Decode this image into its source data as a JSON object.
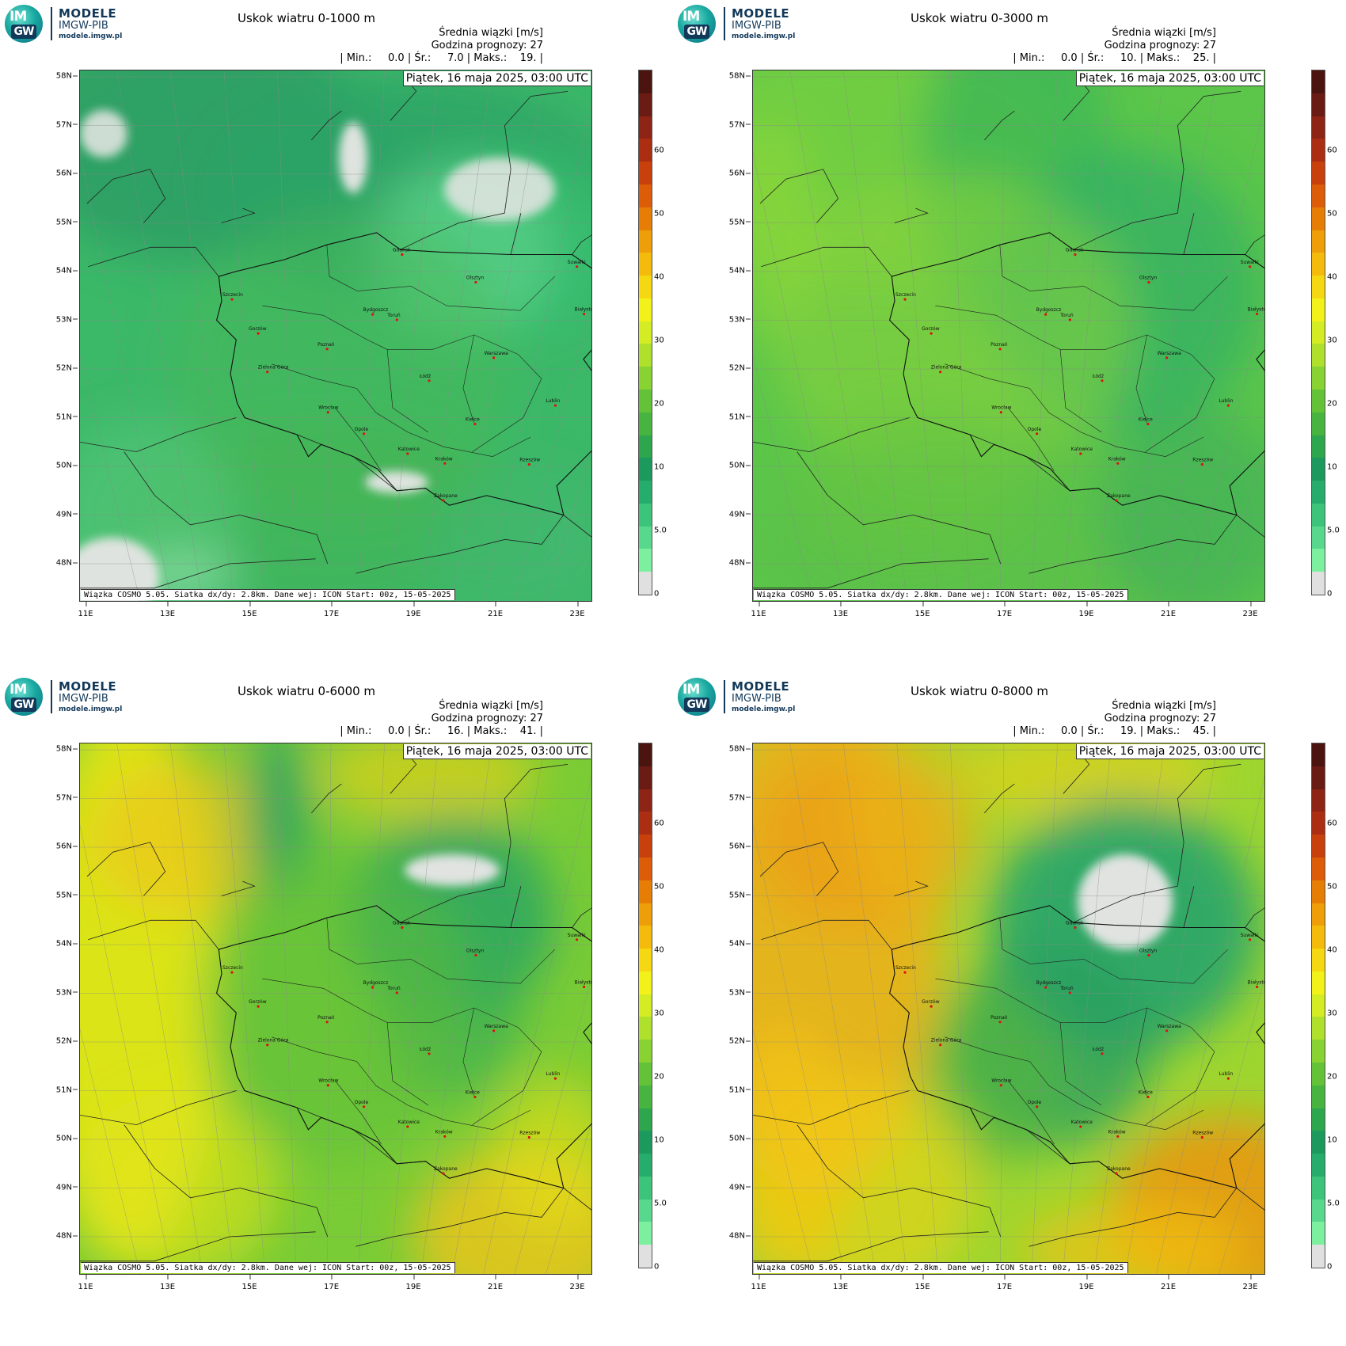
{
  "logo": {
    "brand": "MODELE",
    "org": "IMGW-PIB",
    "url": "modele.imgw.pl",
    "mark_top": "IM",
    "mark_bottom": "GW"
  },
  "common": {
    "subtitle": "Średnia wiązki [m/s]",
    "forecast_hour": "Godzina prognozy: 27",
    "date": "Piątek, 16 maja 2025, 03:00 UTC",
    "footer": "Wiązka COSMO 5.05. Siatka dx/dy: 2.8km. Dane wej: ICON Start: 00z, 15-05-2025",
    "lat_labels": [
      "58N",
      "57N",
      "56N",
      "55N",
      "54N",
      "53N",
      "52N",
      "51N",
      "50N",
      "49N",
      "48N"
    ],
    "lon_labels": [
      "11E",
      "13E",
      "15E",
      "17E",
      "19E",
      "21E",
      "23E"
    ],
    "colorbar_labels": [
      "0",
      "5.0",
      "10",
      "20",
      "30",
      "40",
      "50",
      "60"
    ],
    "colorbar_colors": [
      "#e0e0e0",
      "#7df0a0",
      "#58d88c",
      "#3cc47a",
      "#26ad6c",
      "#1c9a5e",
      "#2ea64e",
      "#46b43e",
      "#64c238",
      "#88d232",
      "#aee02c",
      "#d4ec24",
      "#f2f21a",
      "#f6d812",
      "#f4bb0c",
      "#ee9e08",
      "#e67e06",
      "#dc5c08",
      "#c8400c",
      "#ac2e12",
      "#8e2416",
      "#6a1c14",
      "#4c140e"
    ],
    "cities": [
      {
        "name": "Gdańsk",
        "lon": 18.65,
        "lat": 54.35
      },
      {
        "name": "Olsztyn",
        "lon": 20.48,
        "lat": 53.78
      },
      {
        "name": "Suwałki",
        "lon": 22.93,
        "lat": 54.1
      },
      {
        "name": "Białystok",
        "lon": 23.16,
        "lat": 53.13
      },
      {
        "name": "Szczecin",
        "lon": 14.55,
        "lat": 53.43
      },
      {
        "name": "Bydgoszcz",
        "lon": 18.0,
        "lat": 53.12
      },
      {
        "name": "Toruń",
        "lon": 18.6,
        "lat": 53.01
      },
      {
        "name": "Gorzów",
        "lon": 15.23,
        "lat": 52.73
      },
      {
        "name": "Poznań",
        "lon": 16.93,
        "lat": 52.41
      },
      {
        "name": "Warszawa",
        "lon": 21.01,
        "lat": 52.23
      },
      {
        "name": "Zielona Góra",
        "lon": 15.5,
        "lat": 51.94
      },
      {
        "name": "Łódź",
        "lon": 19.46,
        "lat": 51.76
      },
      {
        "name": "Lublin",
        "lon": 22.57,
        "lat": 51.25
      },
      {
        "name": "Wrocław",
        "lon": 17.03,
        "lat": 51.11
      },
      {
        "name": "Kielce",
        "lon": 20.63,
        "lat": 50.87
      },
      {
        "name": "Opole",
        "lon": 17.93,
        "lat": 50.67
      },
      {
        "name": "Katowice",
        "lon": 19.02,
        "lat": 50.26
      },
      {
        "name": "Kraków",
        "lon": 19.94,
        "lat": 50.06
      },
      {
        "name": "Rzeszów",
        "lon": 22.0,
        "lat": 50.04
      },
      {
        "name": "Zakopane",
        "lon": 19.95,
        "lat": 49.3
      }
    ]
  },
  "panels": [
    {
      "title": "Uskok wiatru 0-1000 m",
      "stats": {
        "min": "0.0",
        "avg": "7.0",
        "max": "19."
      }
    },
    {
      "title": "Uskok wiatru 0-3000 m",
      "stats": {
        "min": "0.0",
        "avg": "10.",
        "max": "25."
      }
    },
    {
      "title": "Uskok wiatru 0-6000 m",
      "stats": {
        "min": "0.0",
        "avg": "16.",
        "max": "41."
      }
    },
    {
      "title": "Uskok wiatru 0-8000 m",
      "stats": {
        "min": "0.0",
        "avg": "19.",
        "max": "45."
      }
    }
  ]
}
